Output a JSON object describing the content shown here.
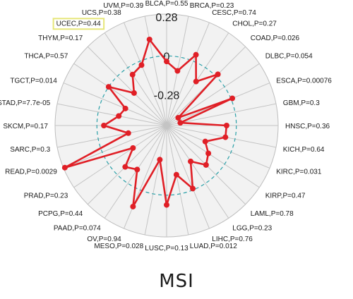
{
  "chart_data": {
    "type": "radar",
    "title": "MSI",
    "axis_ticks": [
      "0.28",
      "0",
      "-0.28"
    ],
    "rlim": [
      -0.5,
      0.3
    ],
    "highlighted": "UCEC,P=0.44",
    "colors": {
      "series": "#e01f26",
      "zero_ring": "#2aa0a8",
      "grid": "#bdbdbd",
      "highlight": "#e6e67a"
    },
    "categories": [
      "BLCA",
      "BRCA",
      "CESC",
      "CHOL",
      "COAD",
      "DLBC",
      "ESCA",
      "GBM",
      "HNSC",
      "KICH",
      "KIRC",
      "KIRP",
      "LAML",
      "LGG",
      "LIHC",
      "LUAD",
      "LUSC",
      "MESO",
      "OV",
      "PAAD",
      "PCPG",
      "PRAD",
      "READ",
      "SARC",
      "SKCM",
      "STAD",
      "TGCT",
      "THCA",
      "THYM",
      "UCEC",
      "UCS",
      "UVM"
    ],
    "labels": [
      "BLCA,P=0.55",
      "BRCA,P=0.23",
      "CESC,P=0.74",
      "CHOL,P=0.27",
      "COAD,P=0.026",
      "DLBC,P=0.054",
      "ESCA,P=0.00076",
      "GBM,P=0.3",
      "HNSC,P=0.36",
      "KICH,P=0.64",
      "KIRC,P=0.031",
      "KIRP,P=0.47",
      "LAML,P=0.78",
      "LGG,P=0.23",
      "LIHC,P=0.76",
      "LUAD,P=0.012",
      "LUSC,P=0.13",
      "MESO,P=0.028",
      "OV,P=0.94",
      "PAAD,P=0.074",
      "PCPG,P=0.44",
      "PRAD,P=0.23",
      "READ,P=0.0029",
      "SARC,P=0.3",
      "SKCM,P=0.17",
      "STAD,P=7.7e-05",
      "TGCT,P=0.014",
      "THCA,P=0.57",
      "THYM,P=0.17",
      "UCEC,P=0.44",
      "UCS,P=0.38",
      "UVM,P=0.39"
    ],
    "values": [
      -0.04,
      -0.1,
      0.05,
      -0.12,
      0.02,
      -0.4,
      0.01,
      -0.4,
      -0.07,
      -0.07,
      -0.2,
      -0.14,
      -0.1,
      -0.19,
      -0.01,
      -0.14,
      0.07,
      -0.25,
      0.13,
      -0.12,
      -0.08,
      -0.21,
      0.29,
      -0.22,
      -0.05,
      -0.15,
      -0.18,
      0.0,
      -0.17,
      -0.06,
      -0.03,
      0.13
    ]
  }
}
